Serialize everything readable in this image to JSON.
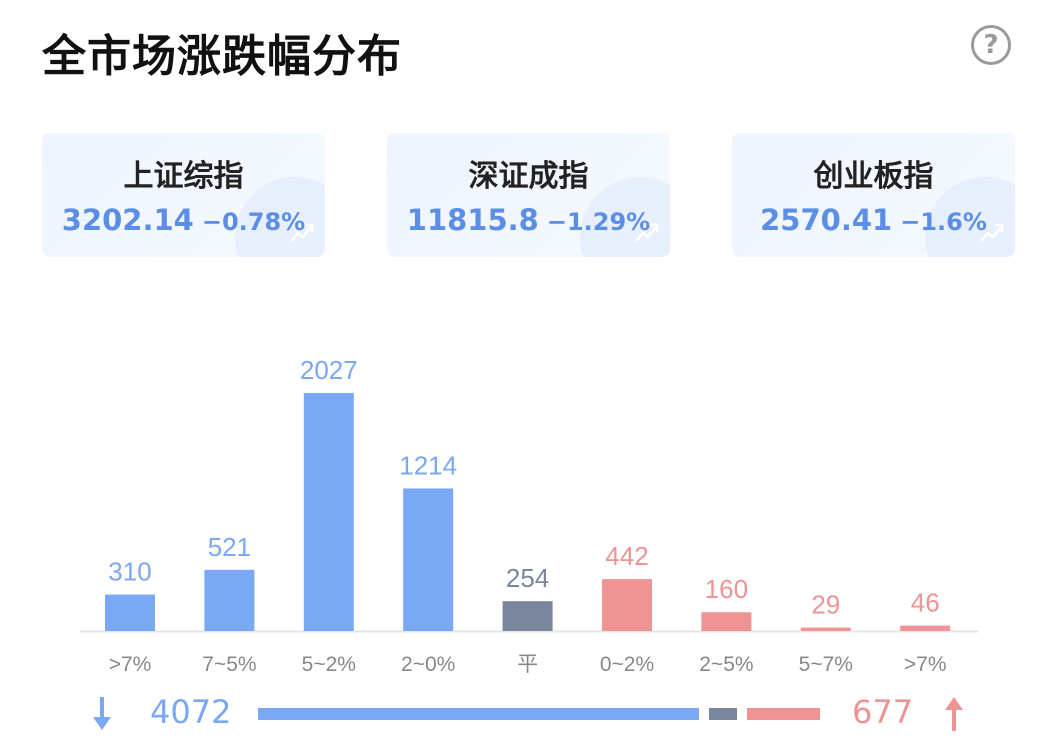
{
  "title": "全市场涨跌幅分布",
  "help_label": "?",
  "indices": [
    {
      "name": "上证综指",
      "value": "3202.14",
      "change": "−0.78%"
    },
    {
      "name": "深证成指",
      "value": "11815.8",
      "change": "−1.29%"
    },
    {
      "name": "创业板指",
      "value": "2570.41",
      "change": "−1.6%"
    }
  ],
  "colors": {
    "down": "#7aa8f5",
    "flat": "#7a859e",
    "up": "#ee9494",
    "index_text": "#5b8fe6"
  },
  "chart_data": {
    "type": "bar",
    "title": "全市场涨跌幅分布",
    "categories": [
      ">7%",
      "7~5%",
      "5~2%",
      "2~0%",
      "平",
      "0~2%",
      "2~5%",
      "5~7%",
      ">7%"
    ],
    "values": [
      310,
      521,
      2027,
      1214,
      254,
      442,
      160,
      29,
      46
    ],
    "groups": [
      "down",
      "down",
      "down",
      "down",
      "flat",
      "up",
      "up",
      "up",
      "up"
    ],
    "ylim": [
      0,
      2027
    ]
  },
  "summary": {
    "down_total": "4072",
    "up_total": "677",
    "flat_total": 254
  }
}
